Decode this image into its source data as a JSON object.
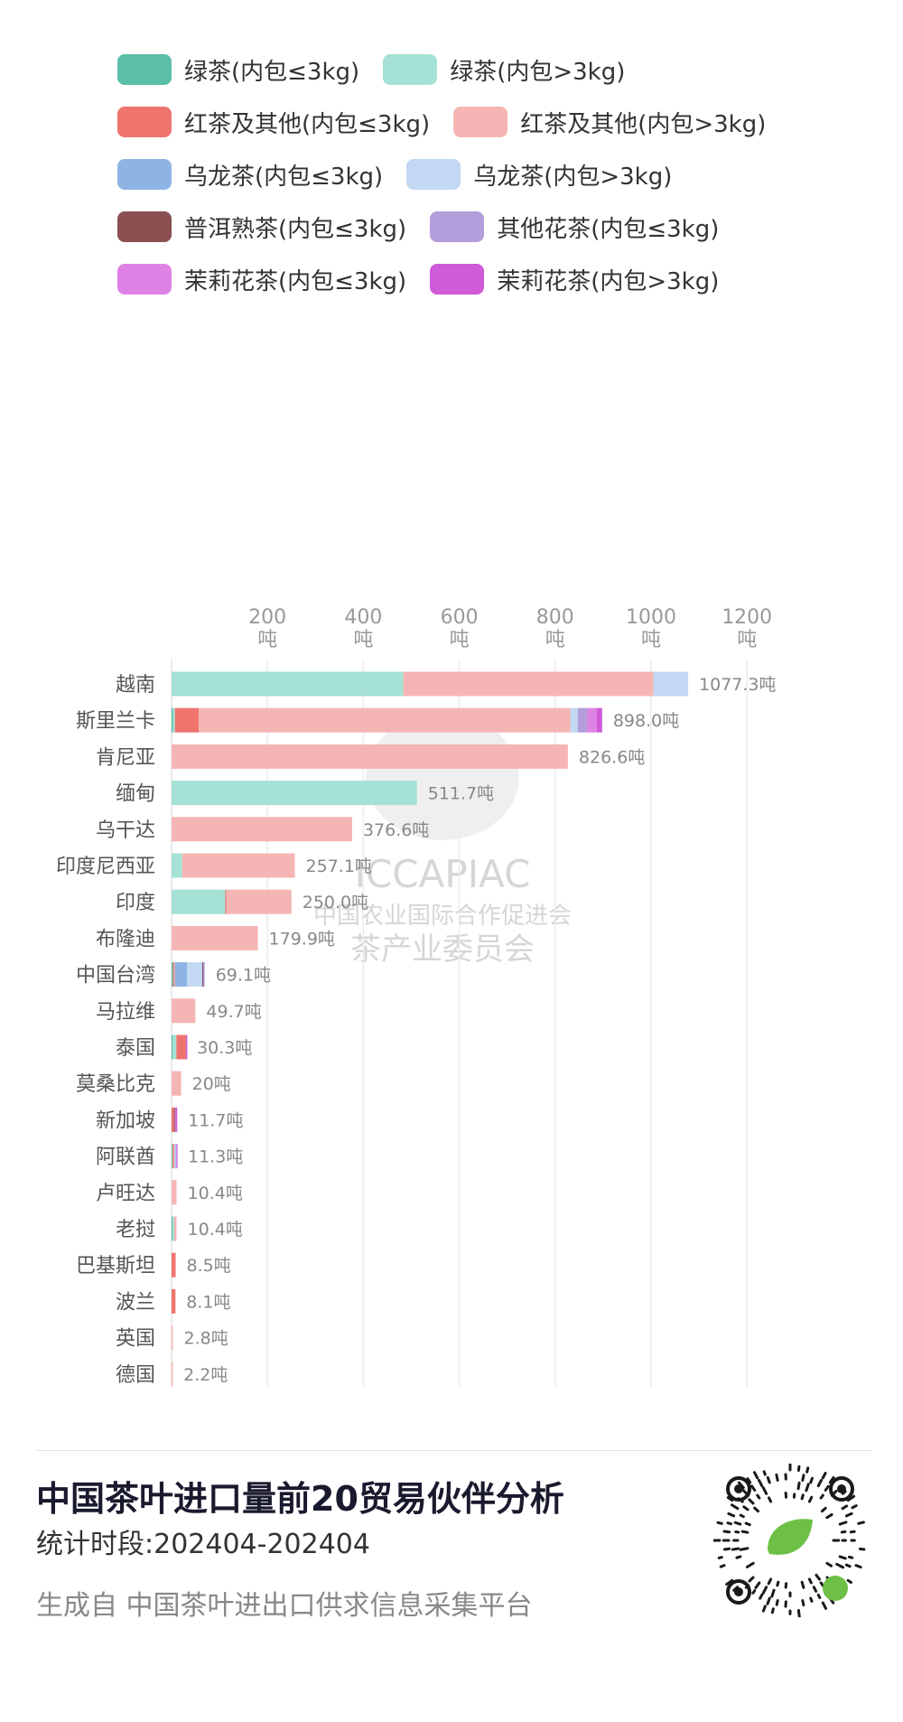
{
  "chart_data": {
    "type": "bar",
    "orientation": "horizontal",
    "stacked": true,
    "xlim": [
      0,
      1300
    ],
    "xtick_labels": [
      {
        "value": 200,
        "line1": "200",
        "line2": "吨"
      },
      {
        "value": 400,
        "line1": "400",
        "line2": "吨"
      },
      {
        "value": 600,
        "line1": "600",
        "line2": "吨"
      },
      {
        "value": 800,
        "line1": "800",
        "line2": "吨"
      },
      {
        "value": 1000,
        "line1": "1000",
        "line2": "吨"
      },
      {
        "value": 1200,
        "line1": "1200",
        "line2": "吨"
      }
    ],
    "grid": true,
    "legend_position": "top",
    "categories": [
      "越南",
      "斯里兰卡",
      "肯尼亚",
      "缅甸",
      "乌干达",
      "印度尼西亚",
      "印度",
      "布隆迪",
      "中国台湾",
      "马拉维",
      "泰国",
      "莫桑比克",
      "新加坡",
      "阿联酋",
      "卢旺达",
      "老挝",
      "巴基斯坦",
      "波兰",
      "英国",
      "德国"
    ],
    "total_labels": [
      "1077.3吨",
      "898.0吨",
      "826.6吨",
      "511.7吨",
      "376.6吨",
      "257.1吨",
      "250.0吨",
      "179.9吨",
      "69.1吨",
      "49.7吨",
      "30.3吨",
      "20吨",
      "11.7吨",
      "11.3吨",
      "10.4吨",
      "10.4吨",
      "8.5吨",
      "8.1吨",
      "2.8吨",
      "2.2吨"
    ],
    "series": [
      {
        "name": "绿茶(内包≤3kg)",
        "color": "#5bbfa8",
        "values": [
          0,
          3,
          0,
          0,
          0,
          0,
          0,
          0,
          3,
          0,
          2,
          0,
          0,
          1,
          0,
          2,
          0,
          0,
          0,
          0
        ]
      },
      {
        "name": "绿茶(内包>3kg)",
        "color": "#a5e1d5",
        "values": [
          483,
          4,
          0,
          511.7,
          0,
          22,
          112,
          0,
          0,
          0,
          8,
          0,
          0,
          1,
          0,
          3.4,
          0,
          0,
          0,
          0
        ]
      },
      {
        "name": "红茶及其他(内包≤3kg)",
        "color": "#ef746e",
        "values": [
          0,
          50,
          0,
          0,
          0,
          0,
          2,
          0,
          2,
          0,
          20,
          0,
          5,
          2,
          0,
          0,
          8.5,
          8.1,
          0,
          0
        ]
      },
      {
        "name": "红茶及其他(内包>3kg)",
        "color": "#f5b5b4",
        "values": [
          522,
          775,
          826.6,
          0,
          376.6,
          235.1,
          136,
          179.9,
          2,
          49.7,
          0,
          20,
          0,
          2,
          10.4,
          5,
          0,
          0,
          2.8,
          2.2
        ]
      },
      {
        "name": "乌龙茶(内包≤3kg)",
        "color": "#8db4e5",
        "values": [
          0,
          0,
          0,
          0,
          0,
          0,
          0,
          0,
          25,
          0,
          0,
          0,
          0,
          1,
          0,
          0,
          0,
          0,
          0,
          0
        ]
      },
      {
        "name": "乌龙茶(内包>3kg)",
        "color": "#c3d8f2",
        "values": [
          72.3,
          15,
          0,
          0,
          0,
          0,
          0,
          0,
          32,
          0,
          0,
          0,
          0,
          2,
          0,
          0,
          0,
          0,
          0,
          0
        ]
      },
      {
        "name": "普洱熟茶(内包≤3kg)",
        "color": "#8a5052",
        "values": [
          0,
          0,
          0,
          0,
          0,
          0,
          0,
          0,
          2,
          0,
          0,
          0,
          2,
          0,
          0,
          0,
          0,
          0,
          0,
          0
        ]
      },
      {
        "name": "其他花茶(内包≤3kg)",
        "color": "#b39ddb",
        "values": [
          0,
          20,
          0,
          0,
          0,
          0,
          0,
          0,
          3.1,
          0,
          0,
          0,
          0,
          1,
          0,
          0,
          0,
          0,
          0,
          0
        ]
      },
      {
        "name": "茉莉花茶(内包≤3kg)",
        "color": "#de82e5",
        "values": [
          0,
          20,
          0,
          0,
          0,
          0,
          0,
          0,
          0,
          0,
          0,
          0,
          2,
          1.3,
          0,
          0,
          0,
          0,
          0,
          0
        ]
      },
      {
        "name": "茉莉花茶(内包>3kg)",
        "color": "#cf5bd8",
        "values": [
          0,
          11,
          0,
          0,
          0,
          0,
          0,
          0,
          0,
          0,
          0.3,
          0,
          2.7,
          0,
          0,
          0,
          0,
          0,
          0,
          0
        ]
      }
    ]
  },
  "watermark": {
    "line1": "ICCAPIAC",
    "line2": "中国农业国际合作促进会",
    "line3": "茶产业委员会"
  },
  "footer": {
    "title": "中国茶叶进口量前20贸易伙伴分析",
    "period": "统计时段:202404-202404",
    "source": "生成自 中国茶叶进出口供求信息采集平台"
  },
  "qr": {
    "icon": "qr-code-icon",
    "badge_icon": "link-icon",
    "accent": "#6dbf45"
  }
}
